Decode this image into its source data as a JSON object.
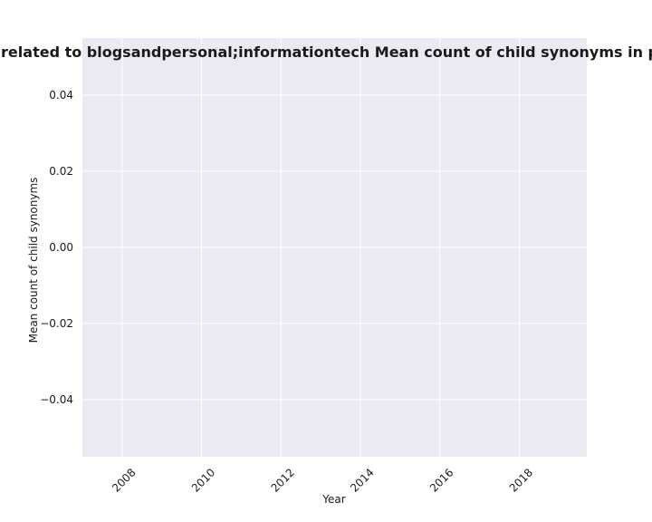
{
  "chart_data": {
    "type": "line",
    "title": "Mean count of child synonyms in privacy policies are related to blogsandpersonal;informationtech",
    "title_display": "ies are related to blogsandpersonal;informationtech Mean count of child synonyms in privacy",
    "xlabel": "Year",
    "ylabel": "Mean count of child synonyms",
    "xlim": [
      2007,
      2019.7
    ],
    "ylim": [
      -0.055,
      0.055
    ],
    "x_ticks": [
      2008,
      2010,
      2012,
      2014,
      2016,
      2018
    ],
    "x_tick_labels": [
      "2008",
      "2010",
      "2012",
      "2014",
      "2016",
      "2018"
    ],
    "y_ticks": [
      0.04,
      0.02,
      0.0,
      -0.02,
      -0.04
    ],
    "y_tick_labels": [
      "0.04",
      "0.02",
      "0.00",
      "−0.02",
      "−0.04"
    ],
    "grid": true,
    "series": [],
    "colors": {
      "plot_background": "#eaeaf2",
      "grid": "#ffffff",
      "text": "#1a1a1a"
    }
  }
}
